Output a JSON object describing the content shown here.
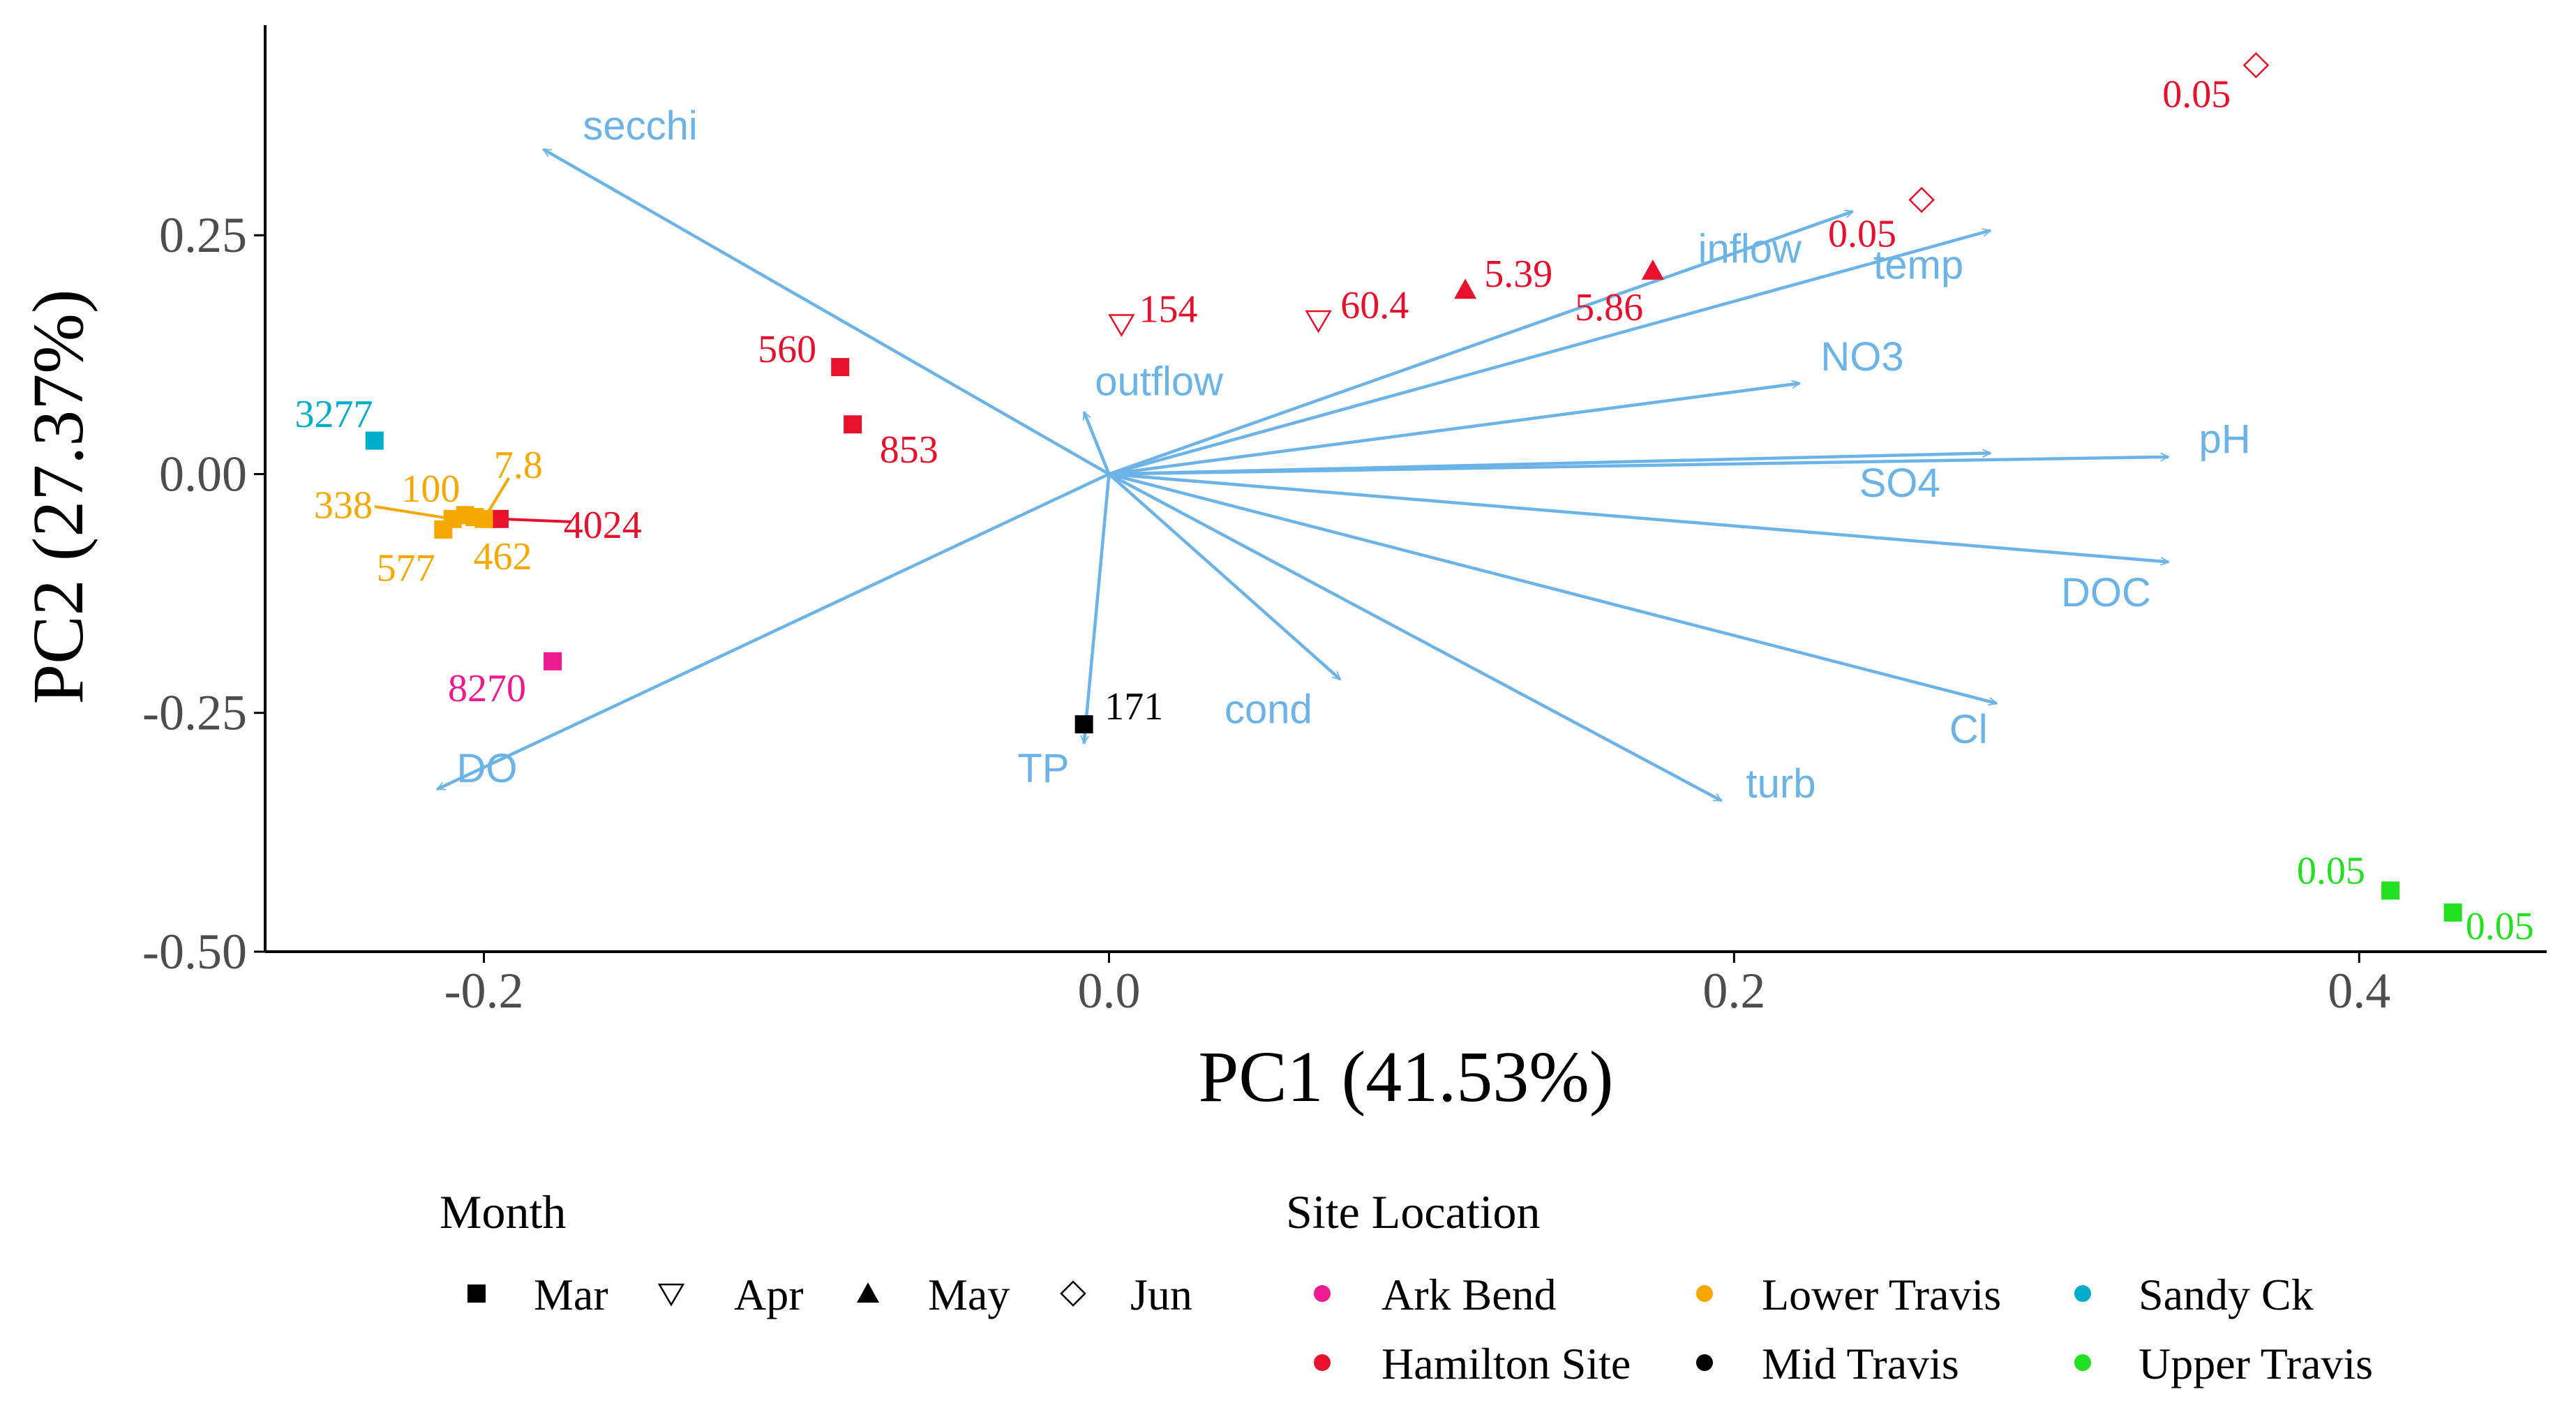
{
  "chart_data": {
    "type": "scatter",
    "subtype": "pca-biplot",
    "xlabel": "PC1 (41.53%)",
    "ylabel": "PC2 (27.37%)",
    "xlim": [
      -0.27,
      0.46
    ],
    "ylim": [
      -0.5,
      0.47
    ],
    "xticks": [
      -0.2,
      0.0,
      0.2,
      0.4
    ],
    "xtick_labels": [
      "-0.2",
      "0.0",
      "0.2",
      "0.4"
    ],
    "yticks": [
      -0.5,
      -0.25,
      0.0,
      0.25
    ],
    "ytick_labels": [
      "-0.50",
      "-0.25",
      "0.00",
      "0.25"
    ],
    "grid": false,
    "arrow_color": "#6cb4e8",
    "origin": [
      0.0,
      0.0
    ],
    "loadings": [
      {
        "name": "secchi",
        "x": -0.181,
        "y": 0.34,
        "label_x": -0.15,
        "label_y": 0.365
      },
      {
        "name": "inflow",
        "x": 0.238,
        "y": 0.275,
        "label_x": 0.205,
        "label_y": 0.236
      },
      {
        "name": "temp",
        "x": 0.282,
        "y": 0.255,
        "label_x": 0.259,
        "label_y": 0.219
      },
      {
        "name": "NO3",
        "x": 0.221,
        "y": 0.095,
        "label_x": 0.241,
        "label_y": 0.123
      },
      {
        "name": "outflow",
        "x": -0.008,
        "y": 0.065,
        "label_x": 0.016,
        "label_y": 0.097
      },
      {
        "name": "SO4",
        "x": 0.282,
        "y": 0.022,
        "label_x": 0.253,
        "label_y": -0.009
      },
      {
        "name": "pH",
        "x": 0.339,
        "y": 0.018,
        "label_x": 0.357,
        "label_y": 0.037
      },
      {
        "name": "DOC",
        "x": 0.339,
        "y": -0.092,
        "label_x": 0.319,
        "label_y": -0.124
      },
      {
        "name": "cond",
        "x": 0.074,
        "y": -0.215,
        "label_x": 0.051,
        "label_y": -0.246
      },
      {
        "name": "Cl",
        "x": 0.284,
        "y": -0.24,
        "label_x": 0.275,
        "label_y": -0.267
      },
      {
        "name": "turb",
        "x": 0.196,
        "y": -0.342,
        "label_x": 0.215,
        "label_y": -0.324
      },
      {
        "name": "TP",
        "x": -0.008,
        "y": -0.282,
        "label_x": -0.021,
        "label_y": -0.308
      },
      {
        "name": "DO",
        "x": -0.215,
        "y": -0.33,
        "label_x": -0.199,
        "label_y": -0.308
      }
    ],
    "points": [
      {
        "label": "0.05",
        "x": 0.367,
        "y": 0.428,
        "month": "Jun",
        "site": "Hamilton Site",
        "lx": 0.348,
        "ly": 0.398
      },
      {
        "label": "0.05",
        "x": 0.26,
        "y": 0.287,
        "month": "Jun",
        "site": "Hamilton Site",
        "lx": 0.241,
        "ly": 0.252
      },
      {
        "label": "154",
        "x": 0.004,
        "y": 0.157,
        "month": "Apr",
        "site": "Hamilton Site",
        "lx": 0.019,
        "ly": 0.173
      },
      {
        "label": "60.4",
        "x": 0.067,
        "y": 0.161,
        "month": "Apr",
        "site": "Hamilton Site",
        "lx": 0.085,
        "ly": 0.177
      },
      {
        "label": "5.39",
        "x": 0.114,
        "y": 0.193,
        "month": "May",
        "site": "Hamilton Site",
        "lx": 0.131,
        "ly": 0.21
      },
      {
        "label": "5.86",
        "x": 0.174,
        "y": 0.213,
        "month": "May",
        "site": "Hamilton Site",
        "lx": 0.16,
        "ly": 0.175
      },
      {
        "label": "560",
        "x": -0.086,
        "y": 0.112,
        "month": "Mar",
        "site": "Hamilton Site",
        "lx": -0.103,
        "ly": 0.131
      },
      {
        "label": "853",
        "x": -0.082,
        "y": 0.052,
        "month": "Mar",
        "site": "Hamilton Site",
        "lx": -0.064,
        "ly": 0.026
      },
      {
        "label": "4024",
        "x": -0.195,
        "y": -0.047,
        "month": "Mar",
        "site": "Hamilton Site",
        "lx": -0.162,
        "ly": -0.053,
        "leader": [
          -0.172,
          -0.05
        ]
      },
      {
        "label": "3277",
        "x": -0.235,
        "y": 0.035,
        "month": "Mar",
        "site": "Sandy Ck",
        "lx": -0.248,
        "ly": 0.063
      },
      {
        "label": "100",
        "x": -0.206,
        "y": -0.043,
        "month": "Mar",
        "site": "Lower Travis",
        "lx": -0.217,
        "ly": -0.015
      },
      {
        "label": "7.8",
        "x": -0.2,
        "y": -0.047,
        "month": "Mar",
        "site": "Lower Travis",
        "lx": -0.189,
        "ly": 0.01,
        "leader": [
          -0.192,
          -0.004
        ]
      },
      {
        "label": "338",
        "x": -0.21,
        "y": -0.047,
        "month": "Mar",
        "site": "Lower Travis",
        "lx": -0.245,
        "ly": -0.032,
        "leader": [
          -0.235,
          -0.034
        ]
      },
      {
        "label": "577",
        "x": -0.213,
        "y": -0.058,
        "month": "Mar",
        "site": "Lower Travis",
        "lx": -0.225,
        "ly": -0.098
      },
      {
        "label": "462",
        "x": -0.203,
        "y": -0.045,
        "month": "Mar",
        "site": "Lower Travis",
        "lx": -0.194,
        "ly": -0.086
      },
      {
        "label": "8270",
        "x": -0.178,
        "y": -0.196,
        "month": "Mar",
        "site": "Ark Bend",
        "lx": -0.199,
        "ly": -0.224
      },
      {
        "label": "171",
        "x": -0.008,
        "y": -0.262,
        "month": "Mar",
        "site": "Mid Travis",
        "lx": 0.008,
        "ly": -0.243
      },
      {
        "label": "0.05",
        "x": 0.41,
        "y": -0.436,
        "month": "Mar",
        "site": "Upper Travis",
        "lx": 0.391,
        "ly": -0.415
      },
      {
        "label": "0.05",
        "x": 0.43,
        "y": -0.459,
        "month": "Mar",
        "site": "Upper Travis",
        "lx": 0.445,
        "ly": -0.473
      }
    ],
    "legend": {
      "placement": "bottom",
      "month_title": "Month",
      "months": [
        {
          "label": "Mar",
          "shape": "square-filled"
        },
        {
          "label": "Apr",
          "shape": "triangle-down-open"
        },
        {
          "label": "May",
          "shape": "triangle-up-filled"
        },
        {
          "label": "Jun",
          "shape": "diamond-open"
        }
      ],
      "site_title": "Site Location",
      "sites": [
        {
          "label": "Ark Bend",
          "color": "#ee1a8f"
        },
        {
          "label": "Hamilton Site",
          "color": "#e8112d"
        },
        {
          "label": "Lower Travis",
          "color": "#f5a800"
        },
        {
          "label": "Mid Travis",
          "color": "#000000"
        },
        {
          "label": "Sandy Ck",
          "color": "#00aecb"
        },
        {
          "label": "Upper Travis",
          "color": "#22e022"
        }
      ]
    }
  }
}
